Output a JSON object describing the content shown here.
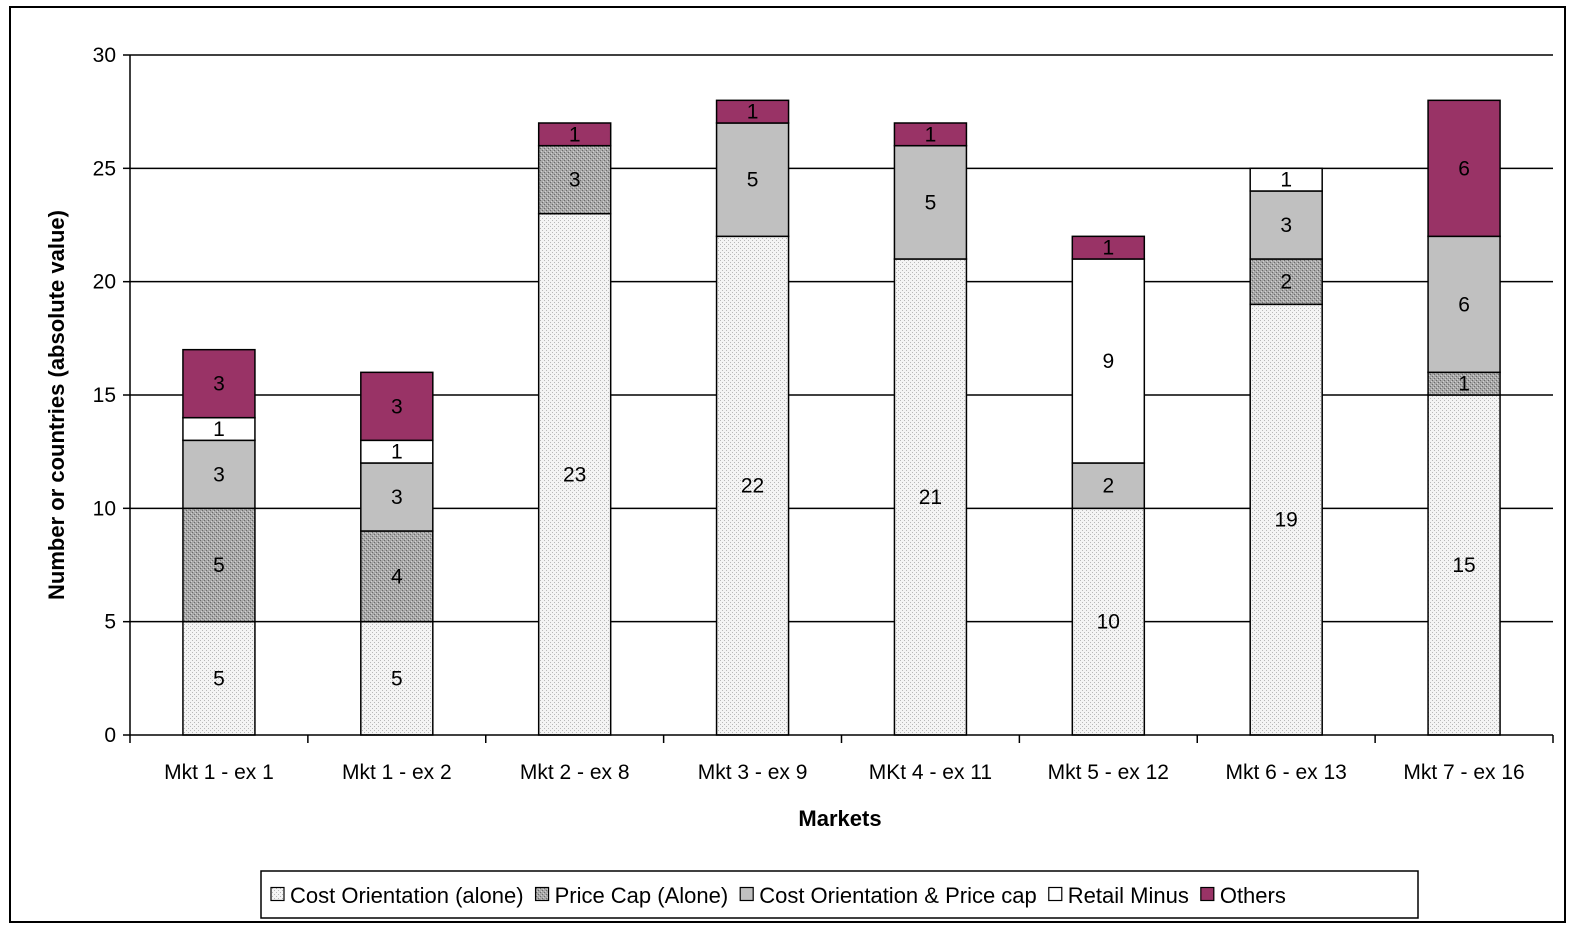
{
  "chart_data": {
    "type": "bar",
    "stacked": true,
    "title": "",
    "xlabel": "Markets",
    "ylabel": "Number or countries (absolute value)",
    "ylim": [
      0,
      30
    ],
    "yticks": [
      0,
      5,
      10,
      15,
      20,
      25,
      30
    ],
    "grid": true,
    "legend_position": "bottom",
    "categories": [
      "Mkt 1 - ex 1",
      "Mkt 1 - ex 2",
      "Mkt 2 - ex 8",
      "Mkt 3 - ex 9",
      "MKt 4 - ex 11",
      "Mkt 5 - ex 12",
      "Mkt 6 - ex 13",
      "Mkt 7 - ex 16"
    ],
    "series": [
      {
        "name": "Cost Orientation (alone)",
        "values": [
          5,
          5,
          23,
          22,
          21,
          10,
          19,
          15
        ],
        "color": "#eeeeee",
        "pattern": "dots-light"
      },
      {
        "name": "Price Cap (Alone)",
        "values": [
          5,
          4,
          3,
          0,
          0,
          0,
          2,
          1
        ],
        "color": "#999999",
        "pattern": "dots-dark"
      },
      {
        "name": "Cost Orientation & Price cap",
        "values": [
          3,
          3,
          0,
          5,
          5,
          2,
          3,
          6
        ],
        "color": "#c0c0c0",
        "pattern": "solid"
      },
      {
        "name": "Retail Minus",
        "values": [
          1,
          1,
          0,
          0,
          0,
          9,
          1,
          0
        ],
        "color": "#ffffff",
        "pattern": "solid"
      },
      {
        "name": "Others",
        "values": [
          3,
          3,
          1,
          1,
          1,
          1,
          0,
          6
        ],
        "color": "#993366",
        "pattern": "solid"
      }
    ]
  }
}
